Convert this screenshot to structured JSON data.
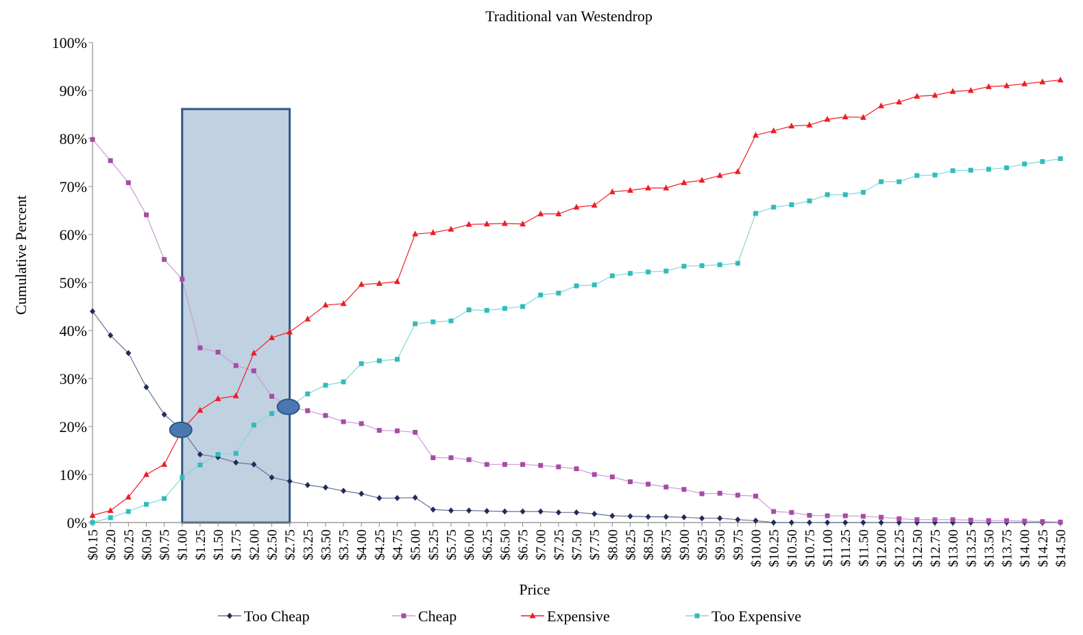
{
  "chart_data": {
    "type": "line",
    "title": "Traditional van Westendrop",
    "xlabel": "Price",
    "ylabel": "Cumulative Percent",
    "ylim": [
      0,
      100
    ],
    "yticks": [
      "0%",
      "10%",
      "20%",
      "30%",
      "40%",
      "50%",
      "60%",
      "70%",
      "80%",
      "90%",
      "100%"
    ],
    "grid": false,
    "legend_position": "bottom",
    "categories": [
      "$0.15",
      "$0.20",
      "$0.25",
      "$0.50",
      "$0.75",
      "$1.00",
      "$1.25",
      "$1.50",
      "$1.75",
      "$2.00",
      "$2.50",
      "$2.75",
      "$3.25",
      "$3.50",
      "$3.75",
      "$4.00",
      "$4.25",
      "$4.75",
      "$5.00",
      "$5.25",
      "$5.75",
      "$6.00",
      "$6.25",
      "$6.50",
      "$6.75",
      "$7.00",
      "$7.25",
      "$7.50",
      "$7.75",
      "$8.00",
      "$8.25",
      "$8.50",
      "$8.75",
      "$9.00",
      "$9.25",
      "$9.50",
      "$9.75",
      "$10.00",
      "$10.25",
      "$10.50",
      "$10.75",
      "$11.00",
      "$11.25",
      "$11.50",
      "$12.00",
      "$12.25",
      "$12.50",
      "$12.75",
      "$13.00",
      "$13.25",
      "$13.50",
      "$13.75",
      "$14.00",
      "$14.25",
      "$14.50"
    ],
    "series": [
      {
        "name": "Too Cheap",
        "color": "#1f2d5c",
        "marker": "diamond",
        "values": [
          44,
          39,
          35.3,
          28.2,
          22.5,
          19.3,
          14.2,
          13.6,
          12.5,
          12.1,
          9.4,
          8.6,
          7.8,
          7.3,
          6.6,
          6,
          5.1,
          5.1,
          5.2,
          2.7,
          2.5,
          2.5,
          2.4,
          2.3,
          2.3,
          2.3,
          2.1,
          2.1,
          1.8,
          1.4,
          1.3,
          1.2,
          1.2,
          1.1,
          0.9,
          0.9,
          0.6,
          0.4,
          0,
          0,
          0,
          0,
          0,
          0,
          0,
          0,
          0,
          0,
          0,
          0,
          0,
          0,
          0,
          0,
          0
        ]
      },
      {
        "name": "Cheap",
        "color": "#a64ca6",
        "marker": "square",
        "values": [
          79.8,
          75.4,
          70.8,
          64.1,
          54.8,
          50.7,
          36.4,
          35.5,
          32.7,
          31.6,
          26.3,
          24.1,
          23.3,
          22.3,
          21,
          20.6,
          19.2,
          19.1,
          18.8,
          13.5,
          13.5,
          13.1,
          12.1,
          12.1,
          12.1,
          11.9,
          11.6,
          11.2,
          10,
          9.5,
          8.5,
          8,
          7.4,
          6.9,
          6,
          6.1,
          5.7,
          5.5,
          2.3,
          2.1,
          1.5,
          1.4,
          1.4,
          1.3,
          1.1,
          0.8,
          0.6,
          0.6,
          0.6,
          0.5,
          0.4,
          0.4,
          0.3,
          0.2,
          0.1
        ]
      },
      {
        "name": "Expensive",
        "color": "#ee1c25",
        "marker": "triangle",
        "values": [
          1.5,
          2.5,
          5.3,
          10,
          12.1,
          19.3,
          23.4,
          25.8,
          26.4,
          35.3,
          38.5,
          39.7,
          42.4,
          45.3,
          45.6,
          49.6,
          49.8,
          50.2,
          60.1,
          60.4,
          61.1,
          62.1,
          62.2,
          62.3,
          62.2,
          64.3,
          64.3,
          65.7,
          66.1,
          68.9,
          69.2,
          69.7,
          69.7,
          70.8,
          71.3,
          72.3,
          73.1,
          80.7,
          81.6,
          82.6,
          82.8,
          84,
          84.5,
          84.4,
          86.8,
          87.6,
          88.8,
          89,
          89.8,
          90,
          90.8,
          91,
          91.4,
          91.8,
          92.2
        ]
      },
      {
        "name": "Too Expensive",
        "color": "#33bbbb",
        "marker": "square",
        "values": [
          0,
          1,
          2.3,
          3.8,
          5,
          9.4,
          12,
          14.2,
          14.4,
          20.3,
          22.7,
          24.1,
          26.8,
          28.6,
          29.3,
          33.1,
          33.7,
          34,
          41.4,
          41.8,
          42,
          44.3,
          44.2,
          44.6,
          45,
          47.4,
          47.8,
          49.3,
          49.5,
          51.4,
          51.9,
          52.2,
          52.4,
          53.4,
          53.5,
          53.7,
          54,
          64.4,
          65.7,
          66.2,
          67,
          68.3,
          68.3,
          68.8,
          71,
          71,
          72.3,
          72.4,
          73.3,
          73.4,
          73.6,
          73.9,
          74.7,
          75.2,
          75.8
        ]
      }
    ],
    "highlight_range": [
      "$1.00",
      "$2.75"
    ],
    "highlight_color": "#c0d1e2",
    "intersections": [
      {
        "x": "$1.00",
        "y": 19.3
      },
      {
        "x": "$2.75",
        "y": 24.1
      }
    ]
  }
}
